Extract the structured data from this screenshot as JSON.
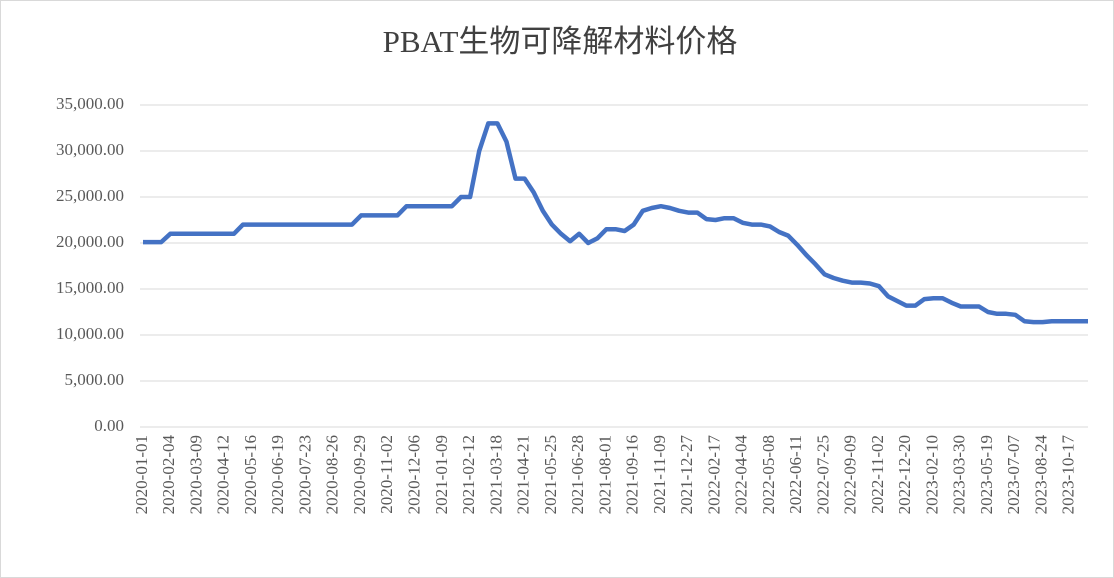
{
  "chart_data": {
    "type": "line",
    "title": "PBAT生物可降解材料价格",
    "categories": [
      "2020-01-01",
      null,
      null,
      "2020-02-04",
      null,
      null,
      "2020-03-09",
      null,
      null,
      "2020-04-12",
      null,
      null,
      "2020-05-16",
      null,
      null,
      "2020-06-19",
      null,
      null,
      "2020-07-23",
      null,
      null,
      "2020-08-26",
      null,
      null,
      "2020-09-29",
      null,
      null,
      "2020-11-02",
      null,
      null,
      "2020-12-06",
      null,
      null,
      "2021-01-09",
      null,
      null,
      "2021-02-12",
      null,
      null,
      "2021-03-18",
      null,
      null,
      "2021-04-21",
      null,
      null,
      "2021-05-25",
      null,
      null,
      "2021-06-28",
      null,
      null,
      "2021-08-01",
      null,
      null,
      "2021-09-16",
      null,
      null,
      "2021-11-09",
      null,
      null,
      "2021-12-27",
      null,
      null,
      "2022-02-17",
      null,
      null,
      "2022-04-04",
      null,
      null,
      "2022-05-08",
      null,
      null,
      "2022-06-11",
      null,
      null,
      "2022-07-25",
      null,
      null,
      "2022-09-09",
      null,
      null,
      "2022-11-02",
      null,
      null,
      "2022-12-20",
      null,
      null,
      "2023-02-10",
      null,
      null,
      "2023-03-30",
      null,
      null,
      "2023-05-19",
      null,
      null,
      "2023-07-07",
      null,
      null,
      "2023-08-24",
      null,
      null,
      "2023-10-17",
      null,
      null
    ],
    "series": [
      {
        "name": "PBAT",
        "color": "#4472c4",
        "values": [
          20100,
          20100,
          20100,
          21000,
          21000,
          21000,
          21000,
          21000,
          21000,
          21000,
          21000,
          22000,
          22000,
          22000,
          22000,
          22000,
          22000,
          22000,
          22000,
          22000,
          22000,
          22000,
          22000,
          22000,
          23000,
          23000,
          23000,
          23000,
          23000,
          24000,
          24000,
          24000,
          24000,
          24000,
          24000,
          25000,
          25000,
          30000,
          33000,
          33000,
          31000,
          27000,
          27000,
          25500,
          23500,
          22000,
          21000,
          20200,
          21000,
          20000,
          20500,
          21500,
          21500,
          21300,
          22000,
          23500,
          23800,
          24000,
          23800,
          23500,
          23300,
          23300,
          22600,
          22500,
          22700,
          22700,
          22200,
          22000,
          22000,
          21800,
          21200,
          20800,
          19800,
          18700,
          17700,
          16600,
          16200,
          15900,
          15700,
          15700,
          15600,
          15300,
          14200,
          13700,
          13200,
          13200,
          13900,
          14000,
          14000,
          13500,
          13100,
          13100,
          13100,
          12500,
          12300,
          12300,
          12200,
          11500,
          11400,
          11400,
          11500,
          11500,
          11500,
          11500,
          11500
        ]
      }
    ],
    "ylim": [
      0,
      35000
    ],
    "yticks": [
      {
        "value": 0,
        "label": "0.00"
      },
      {
        "value": 5000,
        "label": "5,000.00"
      },
      {
        "value": 10000,
        "label": "10,000.00"
      },
      {
        "value": 15000,
        "label": "15,000.00"
      },
      {
        "value": 20000,
        "label": "20,000.00"
      },
      {
        "value": 25000,
        "label": "25,000.00"
      },
      {
        "value": 30000,
        "label": "30,000.00"
      },
      {
        "value": 35000,
        "label": "35,000.00"
      }
    ],
    "grid": true
  }
}
